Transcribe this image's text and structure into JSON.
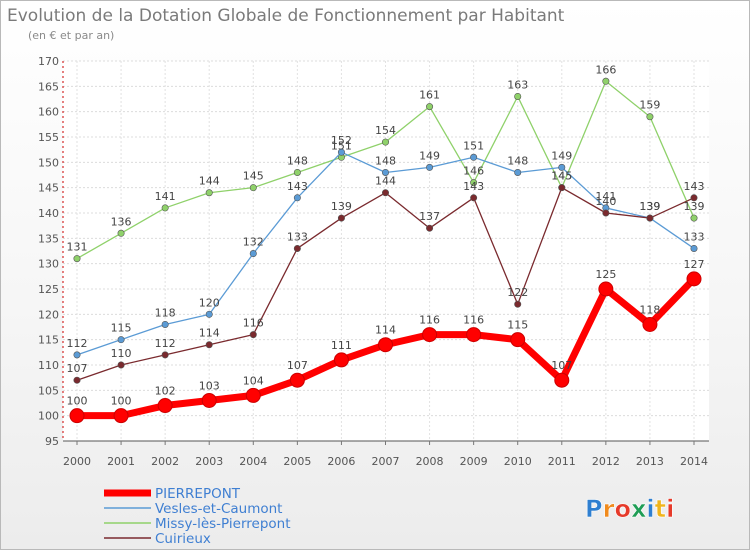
{
  "title": "Evolution de la Dotation Globale de Fonctionnement par Habitant",
  "subtitle": "(en € et par an)",
  "brand": {
    "text": "Proxiti",
    "letters": [
      {
        "ch": "P",
        "color": "#2f7fd0"
      },
      {
        "ch": "r",
        "color": "#f08a1c"
      },
      {
        "ch": "o",
        "color": "#e63a2a"
      },
      {
        "ch": "x",
        "color": "#1f9d55"
      },
      {
        "ch": "i",
        "color": "#2f7fd0"
      },
      {
        "ch": "t",
        "color": "#f0b41c"
      },
      {
        "ch": "i",
        "color": "#e63a2a"
      }
    ]
  },
  "chart_data": {
    "type": "line",
    "title": "Evolution de la Dotation Globale de Fonctionnement par Habitant",
    "subtitle": "(en € et par an)",
    "x": [
      2000,
      2001,
      2002,
      2003,
      2004,
      2005,
      2006,
      2007,
      2008,
      2009,
      2010,
      2011,
      2012,
      2013,
      2014
    ],
    "ylim": [
      95,
      170
    ],
    "yticks": [
      95,
      100,
      105,
      110,
      115,
      120,
      125,
      130,
      135,
      140,
      145,
      150,
      155,
      160,
      165,
      170
    ],
    "grid": true,
    "legend_position": "bottom-left",
    "series": [
      {
        "name": "Missy-lès-Pierrepont",
        "color": "#8fd16a",
        "values": [
          131,
          136,
          141,
          144,
          145,
          148,
          151,
          154,
          161,
          146,
          163,
          145,
          166,
          159,
          139
        ]
      },
      {
        "name": "Vesles-et-Caumont",
        "color": "#5b9bd5",
        "values": [
          112,
          115,
          118,
          120,
          132,
          143,
          152,
          148,
          149,
          151,
          148,
          149,
          141,
          139,
          133
        ]
      },
      {
        "name": "Cuirieux",
        "color": "#7a2a2e",
        "values": [
          107,
          110,
          112,
          114,
          116,
          133,
          139,
          144,
          137,
          143,
          122,
          145,
          140,
          139,
          143
        ]
      },
      {
        "name": "PIERREPONT",
        "color": "#ff0000",
        "values": [
          100,
          100,
          102,
          103,
          104,
          107,
          111,
          114,
          116,
          116,
          115,
          107,
          125,
          118,
          127
        ]
      }
    ],
    "legend_order": [
      "PIERREPONT",
      "Vesles-et-Caumont",
      "Missy-lès-Pierrepont",
      "Cuirieux"
    ]
  }
}
